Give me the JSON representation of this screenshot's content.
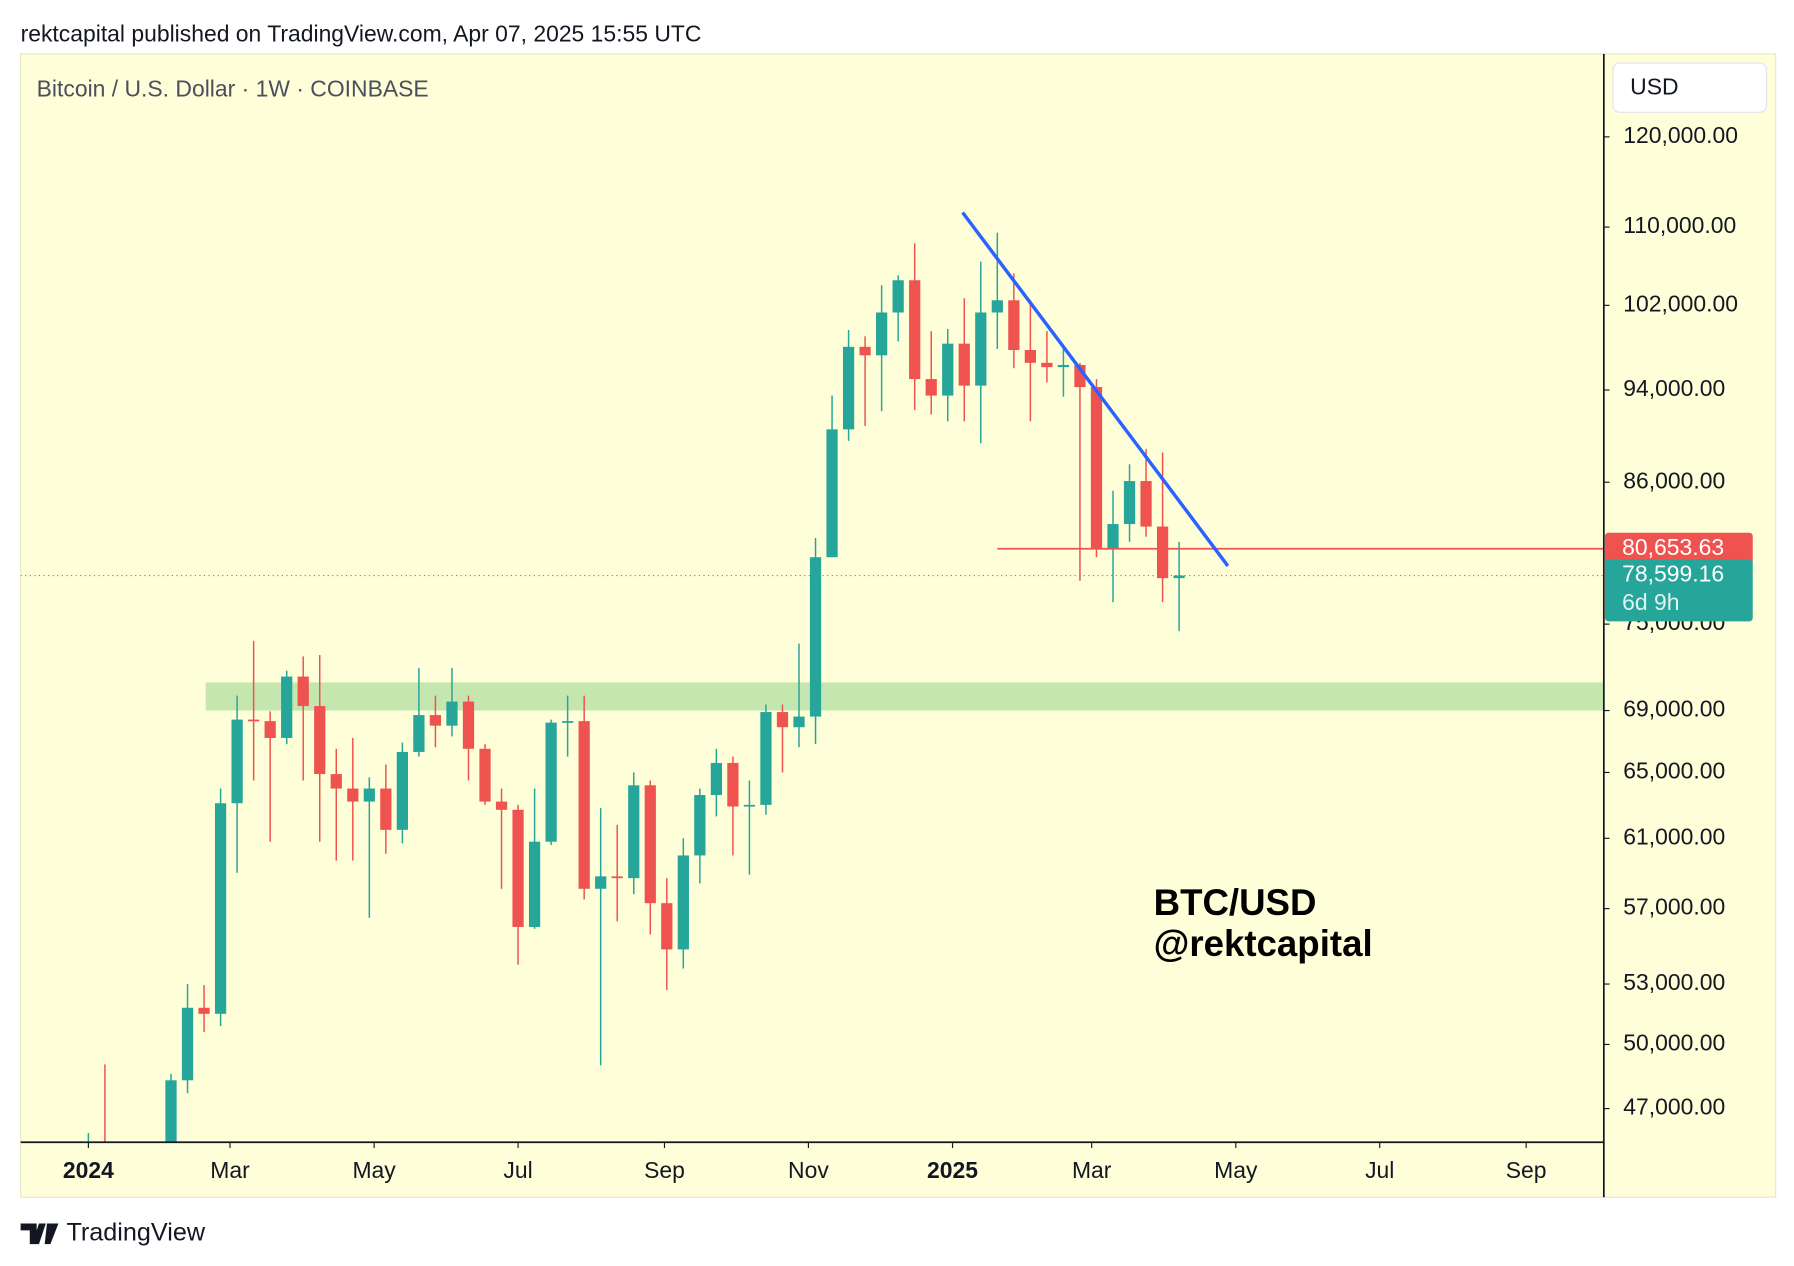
{
  "header": "rektcapital published on TradingView.com, Apr 07, 2025 15:55 UTC",
  "brand": "TradingView",
  "chart_data": {
    "type": "candlestick",
    "title": "Bitcoin / U.S. Dollar · 1W · COINBASE",
    "currency": "USD",
    "watermark": [
      "BTC/USD",
      "@rektcapital"
    ],
    "log_scale": true,
    "colors": {
      "up": "#26a69a",
      "down": "#ef5350",
      "background": "#fefed9",
      "zone": "#c6e6b0",
      "level": "#ef5350",
      "trendline": "#2962ff"
    },
    "x": [
      0,
      1,
      2,
      3,
      4,
      5,
      6,
      7,
      8,
      9,
      10,
      11,
      12,
      13,
      14,
      15,
      16,
      17,
      18,
      19,
      20,
      21,
      22,
      23,
      24,
      25,
      26,
      27,
      28,
      29,
      30,
      31,
      32,
      33,
      34,
      35,
      36,
      37,
      38,
      39,
      40,
      41,
      42,
      43,
      44,
      45,
      46,
      47,
      48,
      49,
      50,
      51,
      52,
      53,
      54,
      55,
      56,
      57,
      58,
      59,
      60,
      61,
      62,
      63,
      64,
      65,
      66
    ],
    "open": [
      42280,
      43950,
      41730,
      41580,
      42030,
      42580,
      48300,
      51800,
      51500,
      63100,
      68400,
      68300,
      67200,
      71300,
      69300,
      64900,
      64000,
      63200,
      64000,
      61500,
      66300,
      68700,
      68000,
      69600,
      66500,
      63200,
      62700,
      56000,
      60800,
      68200,
      68300,
      58100,
      58800,
      58700,
      64200,
      57300,
      54800,
      60000,
      63600,
      65600,
      62900,
      63000,
      68900,
      67900,
      68600,
      80000,
      90500,
      98000,
      97200,
      101300,
      104500,
      95000,
      93500,
      98300,
      94400,
      101300,
      102500,
      97700,
      96500,
      96100,
      96300,
      94270,
      80700,
      82600,
      86100,
      82400,
      78400
    ],
    "high": [
      45900,
      49050,
      43580,
      42850,
      43880,
      48600,
      53000,
      52950,
      64000,
      70000,
      73800,
      68950,
      71700,
      72700,
      72800,
      66500,
      67200,
      64700,
      65500,
      66900,
      71900,
      70000,
      71900,
      70000,
      66800,
      64000,
      63000,
      64000,
      68400,
      70000,
      70000,
      62800,
      61800,
      65000,
      64500,
      58700,
      61000,
      64000,
      66500,
      66000,
      64500,
      69400,
      69400,
      73600,
      81500,
      93500,
      99600,
      99000,
      104000,
      105000,
      108300,
      99500,
      99700,
      102700,
      106400,
      109400,
      105200,
      102500,
      99500,
      98000,
      96500,
      95000,
      85300,
      87500,
      88800,
      88500,
      81200
    ],
    "low": [
      40750,
      41500,
      40280,
      38550,
      41880,
      42250,
      47700,
      50600,
      50900,
      59000,
      64500,
      60800,
      66800,
      64500,
      60800,
      59700,
      59700,
      56500,
      60100,
      60700,
      66000,
      66600,
      67300,
      64500,
      63000,
      58100,
      54000,
      55900,
      60600,
      66000,
      57500,
      49000,
      56300,
      57800,
      55600,
      52700,
      53800,
      58400,
      62300,
      60000,
      58900,
      62400,
      65000,
      66600,
      66800,
      80000,
      89500,
      90800,
      92100,
      98500,
      92200,
      91800,
      91200,
      91200,
      89300,
      97800,
      96000,
      91200,
      94700,
      93400,
      78200,
      80000,
      76600,
      81200,
      81600,
      76600,
      74500
    ],
    "close": [
      43950,
      41730,
      41580,
      42030,
      42580,
      48300,
      51800,
      51500,
      63100,
      68400,
      68300,
      67200,
      71300,
      69300,
      64900,
      64000,
      63200,
      64000,
      61500,
      66300,
      68700,
      68000,
      69600,
      66500,
      63200,
      62700,
      56000,
      60800,
      68200,
      68300,
      58100,
      58800,
      58700,
      64200,
      57300,
      54800,
      60000,
      63600,
      65600,
      62900,
      63000,
      68900,
      67900,
      68600,
      80000,
      90500,
      98000,
      97200,
      101300,
      104500,
      95000,
      93500,
      98300,
      94400,
      101300,
      102500,
      97700,
      96500,
      96100,
      96300,
      94270,
      80700,
      82600,
      86100,
      82400,
      78400,
      78599.16
    ],
    "xlim": [
      -4.1,
      91.7
    ],
    "xticks": [
      {
        "value": 0,
        "label": "2024"
      },
      {
        "value": 8.57,
        "label": "Mar"
      },
      {
        "value": 17.29,
        "label": "May"
      },
      {
        "value": 26,
        "label": "Jul"
      },
      {
        "value": 34.86,
        "label": "Sep"
      },
      {
        "value": 43.57,
        "label": "Nov"
      },
      {
        "value": 52.29,
        "label": "2025"
      },
      {
        "value": 60.71,
        "label": "Mar"
      },
      {
        "value": 69.43,
        "label": "May"
      },
      {
        "value": 78.14,
        "label": "Jul"
      },
      {
        "value": 87,
        "label": "Sep"
      }
    ],
    "ylim": [
      45500,
      130000
    ],
    "yticks": [
      {
        "value": 47000,
        "label": "47,000.00"
      },
      {
        "value": 50000,
        "label": "50,000.00"
      },
      {
        "value": 53000,
        "label": "53,000.00"
      },
      {
        "value": 57000,
        "label": "57,000.00"
      },
      {
        "value": 61000,
        "label": "61,000.00"
      },
      {
        "value": 65000,
        "label": "65,000.00"
      },
      {
        "value": 69000,
        "label": "69,000.00"
      },
      {
        "value": 75000,
        "label": "75,000.00"
      },
      {
        "value": 86000,
        "label": "86,000.00"
      },
      {
        "value": 94000,
        "label": "94,000.00"
      },
      {
        "value": 102000,
        "label": "102,000.00"
      },
      {
        "value": 110000,
        "label": "110,000.00"
      },
      {
        "value": 120000,
        "label": "120,000.00"
      }
    ],
    "zone": {
      "x_start": 7.1,
      "low": 69000,
      "high": 70900
    },
    "level": {
      "x_start": 55,
      "value": 80653.63,
      "value_label": "80,653.63"
    },
    "trendline": {
      "x": [
        52.9,
        68.95
      ],
      "y": [
        111560,
        79330
      ]
    },
    "last_price": {
      "value": 78599.16,
      "value_label": "78,599.16",
      "countdown": "6d 9h"
    }
  }
}
